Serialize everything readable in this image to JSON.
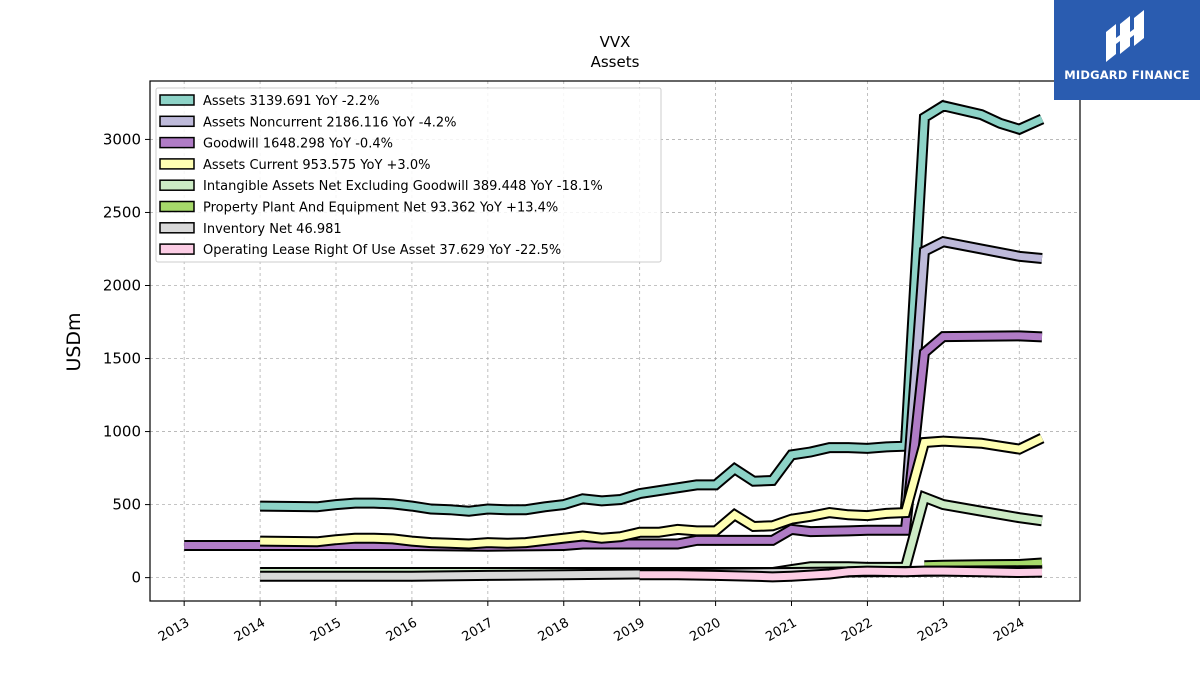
{
  "brand": {
    "name": "MIDGARD FINANCE",
    "bg_color": "#2a5cb0"
  },
  "chart_data": {
    "type": "line",
    "title": "VVX",
    "subtitle": "Assets",
    "ylabel": "USDm",
    "xlabel": "",
    "xlim": [
      2012.55,
      2024.8
    ],
    "ylim": [
      -160,
      3400
    ],
    "grid": true,
    "legend_placement": "top-left",
    "x_ticks": [
      "2013",
      "2014",
      "2015",
      "2016",
      "2017",
      "2018",
      "2019",
      "2020",
      "2021",
      "2022",
      "2023",
      "2024"
    ],
    "y_ticks": [
      0,
      500,
      1000,
      1500,
      2000,
      2500,
      3000
    ],
    "series": [
      {
        "name": "Assets",
        "legend": "Assets  3139.691 YoY -2.2%",
        "color": "#8dd3c7",
        "x": [
          2014.0,
          2014.75,
          2015.0,
          2015.25,
          2015.5,
          2015.75,
          2016.0,
          2016.25,
          2016.5,
          2016.75,
          2017.0,
          2017.25,
          2017.5,
          2017.75,
          2018.0,
          2018.25,
          2018.5,
          2018.75,
          2019.0,
          2019.25,
          2019.5,
          2019.75,
          2020.0,
          2020.25,
          2020.5,
          2020.75,
          2021.0,
          2021.25,
          2021.5,
          2021.75,
          2022.0,
          2022.25,
          2022.5,
          2022.75,
          2023.0,
          2023.5,
          2023.75,
          2024.0,
          2024.3
        ],
        "y": [
          490,
          485,
          500,
          510,
          510,
          505,
          490,
          470,
          465,
          455,
          470,
          465,
          465,
          485,
          500,
          540,
          525,
          535,
          575,
          595,
          615,
          635,
          635,
          745,
          660,
          665,
          840,
          860,
          890,
          890,
          885,
          895,
          900,
          3150,
          3230,
          3170,
          3110,
          3070,
          3140
        ]
      },
      {
        "name": "Assets Noncurrent",
        "legend": "Assets Noncurrent  2186.116 YoY -4.2%",
        "color": "#bebada",
        "x": [
          2022.5,
          2022.75,
          2023.0,
          2023.5,
          2024.0,
          2024.3
        ],
        "y": [
          470,
          2235,
          2300,
          2250,
          2200,
          2185
        ]
      },
      {
        "name": "Goodwill",
        "legend": "Goodwill  1648.298 YoY -0.4%",
        "color": "#b07cc6",
        "x": [
          2013.0,
          2014.0,
          2015.0,
          2016.0,
          2017.0,
          2018.0,
          2018.25,
          2018.75,
          2019.5,
          2019.75,
          2020.0,
          2020.75,
          2021.0,
          2021.25,
          2021.75,
          2022.0,
          2022.5,
          2022.75,
          2023.0,
          2024.0,
          2024.3
        ],
        "y": [
          220,
          220,
          220,
          220,
          215,
          220,
          230,
          230,
          230,
          255,
          255,
          255,
          330,
          315,
          320,
          325,
          325,
          1540,
          1650,
          1655,
          1648
        ]
      },
      {
        "name": "Assets Current",
        "legend": "Assets Current  953.575 YoY +3.0%",
        "color": "#ffffb3",
        "x": [
          2014.0,
          2014.75,
          2015.0,
          2015.25,
          2015.5,
          2015.75,
          2016.0,
          2016.25,
          2016.5,
          2016.75,
          2017.0,
          2017.25,
          2017.5,
          2017.75,
          2018.0,
          2018.25,
          2018.5,
          2018.75,
          2019.0,
          2019.25,
          2019.5,
          2019.75,
          2020.0,
          2020.25,
          2020.5,
          2020.75,
          2021.0,
          2021.25,
          2021.5,
          2021.75,
          2022.0,
          2022.25,
          2022.5,
          2022.75,
          2023.0,
          2023.5,
          2023.75,
          2024.0,
          2024.3
        ],
        "y": [
          250,
          245,
          260,
          270,
          270,
          265,
          250,
          240,
          235,
          230,
          240,
          235,
          240,
          255,
          270,
          285,
          270,
          280,
          310,
          310,
          330,
          320,
          320,
          430,
          350,
          355,
          400,
          420,
          445,
          430,
          425,
          440,
          445,
          925,
          935,
          920,
          900,
          880,
          955
        ]
      },
      {
        "name": "Intangible Assets Net Excluding Goodwill",
        "legend": "Intangible Assets Net Excluding Goodwill  389.448 YoY -18.1%",
        "color": "#ccebc5",
        "x": [
          2014.0,
          2020.75,
          2021.0,
          2021.25,
          2021.75,
          2022.0,
          2022.5,
          2022.75,
          2023.0,
          2023.5,
          2024.0,
          2024.3
        ],
        "y": [
          35,
          35,
          55,
          75,
          75,
          70,
          70,
          550,
          500,
          455,
          410,
          389
        ]
      },
      {
        "name": "Property Plant And Equipment Net",
        "legend": "Property Plant And Equipment Net  93.362 YoY +13.4%",
        "color": "#a6d96a",
        "x": [
          2022.75,
          2023.0,
          2023.5,
          2024.0,
          2024.3
        ],
        "y": [
          82,
          85,
          88,
          90,
          100
        ]
      },
      {
        "name": "Inventory Net",
        "legend": "Inventory Net  46.981",
        "color": "#d9d9d9",
        "x": [
          2014.0,
          2015.0,
          2016.0,
          2017.0,
          2018.0,
          2019.0,
          2020.0,
          2021.0,
          2022.0,
          2023.0,
          2024.0,
          2024.3
        ],
        "y": [
          10,
          10,
          10,
          15,
          20,
          25,
          30,
          35,
          40,
          45,
          47,
          47
        ]
      },
      {
        "name": "Operating Lease Right Of Use Asset",
        "legend": "Operating Lease Right Of Use Asset  37.629 YoY -22.5%",
        "color": "#fccde5",
        "x": [
          2019.0,
          2019.5,
          2020.0,
          2020.5,
          2020.75,
          2021.0,
          2021.5,
          2021.75,
          2022.0,
          2022.5,
          2022.75,
          2023.0,
          2023.5,
          2024.0,
          2024.3
        ],
        "y": [
          20,
          20,
          15,
          10,
          5,
          10,
          25,
          40,
          45,
          40,
          45,
          45,
          40,
          35,
          38
        ]
      }
    ]
  }
}
